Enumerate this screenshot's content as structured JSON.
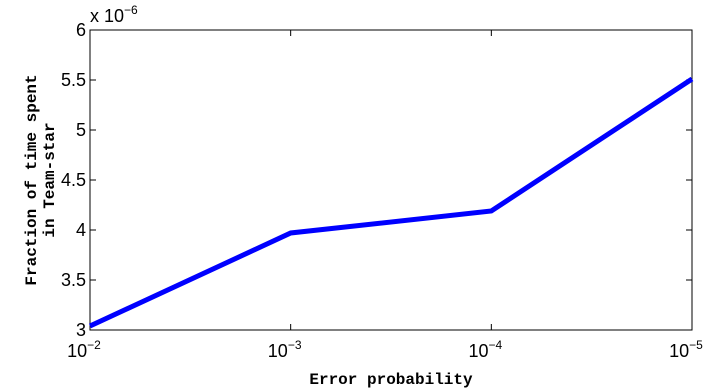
{
  "chart_data": {
    "type": "line",
    "xlabel": "Error probability",
    "ylabel_lines": [
      "Fraction of time spent",
      "in Team-star"
    ],
    "y_multiplier_label": {
      "base": "x 10",
      "exponent": "−6"
    },
    "x_scale": "log",
    "x_reversed": true,
    "xlim": [
      0.01,
      1e-05
    ],
    "ylim": [
      3,
      6
    ],
    "y_unit_multiplier": 1e-06,
    "x_ticks": [
      {
        "value": 0.01,
        "base": "10",
        "exponent": "−2"
      },
      {
        "value": 0.001,
        "base": "10",
        "exponent": "−3"
      },
      {
        "value": 0.0001,
        "base": "10",
        "exponent": "−4"
      },
      {
        "value": 1e-05,
        "base": "10",
        "exponent": "−5"
      }
    ],
    "y_ticks": [
      {
        "value": 3,
        "label": "3"
      },
      {
        "value": 3.5,
        "label": "3.5"
      },
      {
        "value": 4,
        "label": "4"
      },
      {
        "value": 4.5,
        "label": "4.5"
      },
      {
        "value": 5,
        "label": "5"
      },
      {
        "value": 5.5,
        "label": "5.5"
      },
      {
        "value": 6,
        "label": "6"
      }
    ],
    "grid": false,
    "series": [
      {
        "color": "#0000ff",
        "x": [
          0.01,
          0.001,
          0.0001,
          1e-05
        ],
        "y": [
          3.04,
          3.97,
          4.19,
          5.51
        ]
      }
    ]
  }
}
